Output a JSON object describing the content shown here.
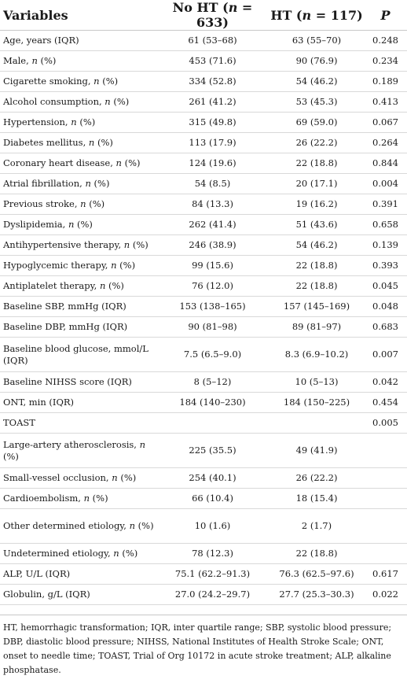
{
  "table": {
    "headers": {
      "variables": "Variables",
      "no_ht_label": "No HT (",
      "no_ht_n": "n",
      "no_ht_count": " = 633)",
      "ht_label": "HT (",
      "ht_n": "n",
      "ht_count": " = 117)",
      "p": "P"
    },
    "rows": [
      {
        "variable": "Age, years (IQR)",
        "no_ht": "61 (53–68)",
        "ht": "63 (55–70)",
        "p": "0.248"
      },
      {
        "variable": "Male, n (%)",
        "no_ht": "453 (71.6)",
        "ht": "90 (76.9)",
        "p": "0.234"
      },
      {
        "variable": "Cigarette smoking, n (%)",
        "no_ht": "334 (52.8)",
        "ht": "54 (46.2)",
        "p": "0.189"
      },
      {
        "variable": "Alcohol consumption, n (%)",
        "no_ht": "261 (41.2)",
        "ht": "53 (45.3)",
        "p": "0.413"
      },
      {
        "variable": "Hypertension, n (%)",
        "no_ht": "315 (49.8)",
        "ht": "69 (59.0)",
        "p": "0.067"
      },
      {
        "variable": "Diabetes mellitus, n (%)",
        "no_ht": "113 (17.9)",
        "ht": "26 (22.2)",
        "p": "0.264"
      },
      {
        "variable": "Coronary heart disease, n (%)",
        "no_ht": "124 (19.6)",
        "ht": "22 (18.8)",
        "p": "0.844"
      },
      {
        "variable": "Atrial fibrillation, n (%)",
        "no_ht": "54 (8.5)",
        "ht": "20 (17.1)",
        "p": "0.004"
      },
      {
        "variable": "Previous stroke, n (%)",
        "no_ht": "84 (13.3)",
        "ht": "19 (16.2)",
        "p": "0.391"
      },
      {
        "variable": "Dyslipidemia, n (%)",
        "no_ht": "262 (41.4)",
        "ht": "51 (43.6)",
        "p": "0.658"
      },
      {
        "variable": "Antihypertensive therapy, n (%)",
        "no_ht": "246 (38.9)",
        "ht": "54 (46.2)",
        "p": "0.139"
      },
      {
        "variable": "Hypoglycemic therapy, n (%)",
        "no_ht": "99 (15.6)",
        "ht": "22 (18.8)",
        "p": "0.393"
      },
      {
        "variable": "Antiplatelet therapy, n (%)",
        "no_ht": "76 (12.0)",
        "ht": "22 (18.8)",
        "p": "0.045"
      },
      {
        "variable": "Baseline SBP, mmHg (IQR)",
        "no_ht": "153 (138–165)",
        "ht": "157 (145–169)",
        "p": "0.048"
      },
      {
        "variable": "Baseline DBP, mmHg (IQR)",
        "no_ht": "90 (81–98)",
        "ht": "89 (81–97)",
        "p": "0.683"
      },
      {
        "variable": "Baseline blood glucose, mmol/L (IQR)",
        "no_ht": "7.5 (6.5–9.0)",
        "ht": "8.3 (6.9–10.2)",
        "p": "0.007",
        "tall": true
      },
      {
        "variable": "Baseline NIHSS score (IQR)",
        "no_ht": "8 (5–12)",
        "ht": "10 (5–13)",
        "p": "0.042"
      },
      {
        "variable": "ONT, min (IQR)",
        "no_ht": "184 (140–230)",
        "ht": "184 (150–225)",
        "p": "0.454"
      },
      {
        "variable": "TOAST",
        "no_ht": "",
        "ht": "",
        "p": "0.005"
      },
      {
        "variable": "Large-artery atherosclerosis, n (%)",
        "no_ht": "225 (35.5)",
        "ht": "49 (41.9)",
        "p": "",
        "tall": true
      },
      {
        "variable": "Small-vessel occlusion, n (%)",
        "no_ht": "254 (40.1)",
        "ht": "26 (22.2)",
        "p": ""
      },
      {
        "variable": "Cardioembolism, n (%)",
        "no_ht": "66 (10.4)",
        "ht": "18 (15.4)",
        "p": ""
      },
      {
        "variable": "Other determined etiology, n (%)",
        "no_ht": "10 (1.6)",
        "ht": "2 (1.7)",
        "p": "",
        "tall": true
      },
      {
        "variable": "Undetermined etiology, n (%)",
        "no_ht": "78 (12.3)",
        "ht": "22 (18.8)",
        "p": ""
      },
      {
        "variable": "ALP, U/L (IQR)",
        "no_ht": "75.1 (62.2–91.3)",
        "ht": "76.3 (62.5–97.6)",
        "p": "0.617"
      },
      {
        "variable": "Globulin, g/L (IQR)",
        "no_ht": "27.0 (24.2–29.7)",
        "ht": "27.7 (25.3–30.3)",
        "p": "0.022"
      }
    ]
  },
  "footnote": "HT, hemorrhagic transformation; IQR, inter quartile range; SBP, systolic blood pressure; DBP, diastolic blood pressure; NIHSS, National Institutes of Health Stroke Scale; ONT, onset to needle time; TOAST, Trial of Org 10172 in acute stroke treatment; ALP, alkaline phosphatase."
}
